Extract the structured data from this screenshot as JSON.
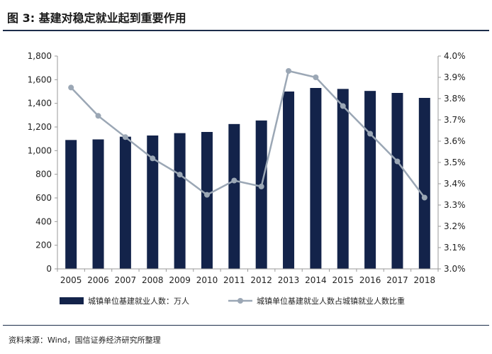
{
  "figure": {
    "title": "图 3: 基建对稳定就业起到重要作用",
    "source": "资料来源：Wind，国信证券经济研究所整理"
  },
  "colors": {
    "bar": "#13234a",
    "line": "#9ba7b5",
    "axis": "#999999",
    "rule": "#1c2d4a"
  },
  "chart_data": {
    "type": "bar+line",
    "categories": [
      "2005",
      "2006",
      "2007",
      "2008",
      "2009",
      "2010",
      "2011",
      "2012",
      "2013",
      "2014",
      "2015",
      "2016",
      "2017",
      "2018"
    ],
    "series": [
      {
        "name": "城镇单位基建就业人数：万人",
        "type": "bar",
        "axis": "left",
        "values": [
          1090,
          1095,
          1118,
          1128,
          1148,
          1158,
          1225,
          1255,
          1500,
          1530,
          1522,
          1505,
          1488,
          1446
        ]
      },
      {
        "name": "城镇单位基建就业人数占城镇就业人数比重",
        "type": "line",
        "axis": "right",
        "values": [
          3.852,
          3.719,
          3.619,
          3.519,
          3.443,
          3.348,
          3.415,
          3.387,
          3.93,
          3.9,
          3.765,
          3.635,
          3.505,
          3.335
        ]
      }
    ],
    "y_left": {
      "lim": [
        0,
        1800
      ],
      "ticks": [
        "0",
        "200",
        "400",
        "600",
        "800",
        "1,000",
        "1,200",
        "1,400",
        "1,600",
        "1,800"
      ]
    },
    "y_right": {
      "lim": [
        3.0,
        4.0
      ],
      "ticks": [
        "3.0%",
        "3.1%",
        "3.2%",
        "3.3%",
        "3.4%",
        "3.5%",
        "3.6%",
        "3.7%",
        "3.8%",
        "3.9%",
        "4.0%"
      ]
    },
    "legend_position": "bottom",
    "grid": false
  }
}
